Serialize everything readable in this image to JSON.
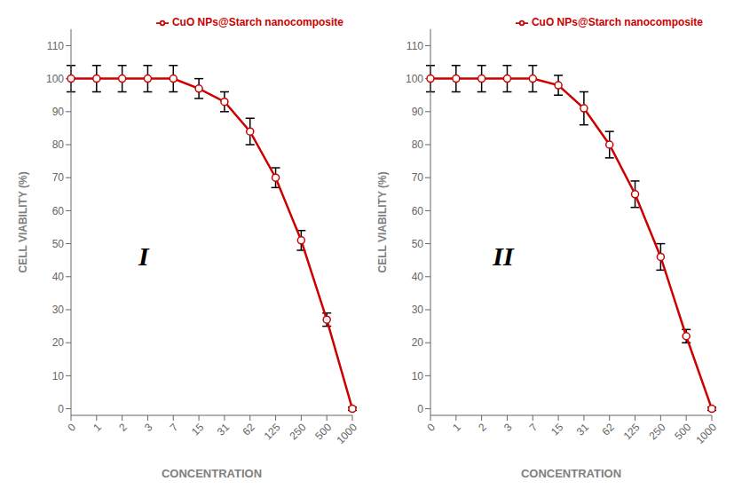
{
  "chart_data": [
    {
      "type": "line",
      "categories": [
        "0",
        "1",
        "2",
        "3",
        "7",
        "15",
        "31",
        "62",
        "125",
        "250",
        "500",
        "1000"
      ],
      "series": [
        {
          "name": "CuO NPs@Starch nanocomposite",
          "color": "#cc0000",
          "marker": "circle",
          "values": [
            100,
            100,
            100,
            100,
            100,
            97,
            93,
            84,
            70,
            51,
            27,
            0
          ],
          "errors": [
            4,
            4,
            4,
            4,
            4,
            3,
            3,
            4,
            3,
            3,
            2,
            0.5
          ]
        }
      ],
      "x_label": "CONCENTRATION",
      "y_label": "CELL VIABILITY (%)",
      "ylim": [
        -2,
        115
      ],
      "yticks": [
        0,
        10,
        20,
        30,
        40,
        50,
        60,
        70,
        80,
        90,
        100,
        110
      ],
      "grid": false,
      "legend": "upper right",
      "annotations": [
        "I"
      ]
    },
    {
      "type": "line",
      "categories": [
        "0",
        "1",
        "2",
        "3",
        "7",
        "15",
        "31",
        "62",
        "125",
        "250",
        "500",
        "1000"
      ],
      "series": [
        {
          "name": "CuO NPs@Starch nanocomposite",
          "color": "#cc0000",
          "marker": "circle",
          "values": [
            100,
            100,
            100,
            100,
            100,
            98,
            91,
            80,
            65,
            46,
            22,
            0
          ],
          "errors": [
            4,
            4,
            4,
            4,
            4,
            3,
            5,
            4,
            4,
            4,
            2,
            0.5
          ]
        }
      ],
      "x_label": "CONCENTRATION",
      "y_label": "CELL VIABILITY (%)",
      "ylim": [
        -2,
        115
      ],
      "yticks": [
        0,
        10,
        20,
        30,
        40,
        50,
        60,
        70,
        80,
        90,
        100,
        110
      ],
      "grid": false,
      "legend": "upper right",
      "annotations": [
        "II"
      ]
    }
  ]
}
